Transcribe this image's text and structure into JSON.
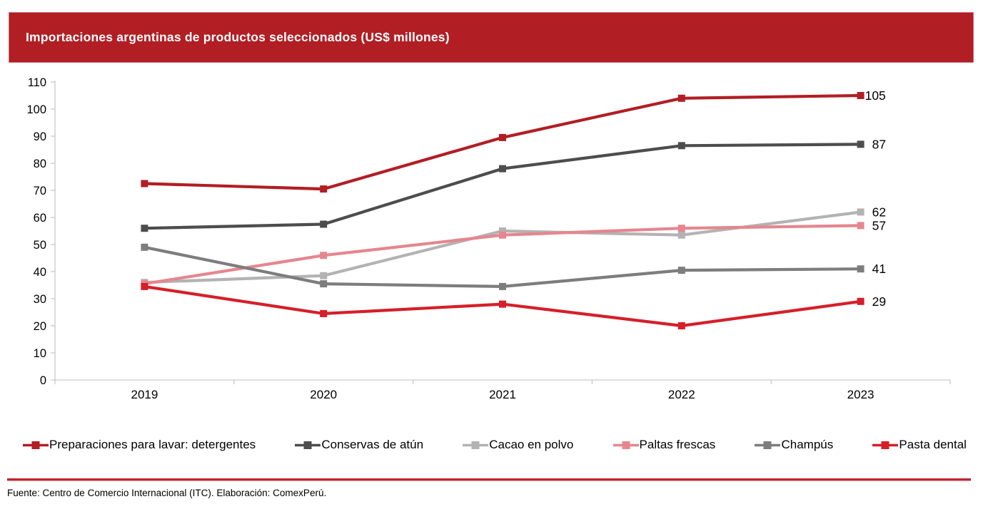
{
  "header": {
    "title": "Importaciones argentinas de productos seleccionados (US$ millones)",
    "background_color": "#B11E24",
    "text_color": "#FFFFFF"
  },
  "chart_data": {
    "type": "line",
    "title": "Importaciones argentinas de productos seleccionados (US$ millones)",
    "categories": [
      "2019",
      "2020",
      "2021",
      "2022",
      "2023"
    ],
    "series": [
      {
        "name": "Preparaciones para lavar: detergentes",
        "color": "#B11E24",
        "values": [
          72.5,
          70.5,
          89.5,
          104,
          105
        ],
        "end_label": "105"
      },
      {
        "name": "Conservas de atún",
        "color": "#4D4D4D",
        "values": [
          56,
          57.5,
          78,
          86.5,
          87
        ],
        "end_label": "87"
      },
      {
        "name": "Cacao en polvo",
        "color": "#B3B3B3",
        "values": [
          36,
          38.5,
          55,
          53.5,
          62
        ],
        "end_label": "62"
      },
      {
        "name": "Paltas frescas",
        "color": "#E5868F",
        "values": [
          35.5,
          46,
          53.5,
          56,
          57
        ],
        "end_label": "57"
      },
      {
        "name": "Champús",
        "color": "#7D7D7D",
        "values": [
          49,
          35.5,
          34.5,
          40.5,
          41
        ],
        "end_label": "41"
      },
      {
        "name": "Pasta dental",
        "color": "#D51F29",
        "values": [
          34.5,
          24.5,
          28,
          20,
          29
        ],
        "end_label": "29"
      }
    ],
    "xlabel": "",
    "ylabel": "",
    "ylim": [
      0,
      110
    ],
    "ytick_step": 10,
    "grid": false,
    "marker": "square",
    "legend_position": "bottom",
    "axis_color": "#C9C9C9",
    "tick_label_color": "#000000"
  },
  "footer": {
    "divider_color": "#BE2430",
    "source_text": "Fuente: Centro de Comercio Internacional (ITC). Elaboración: ComexPerú."
  }
}
